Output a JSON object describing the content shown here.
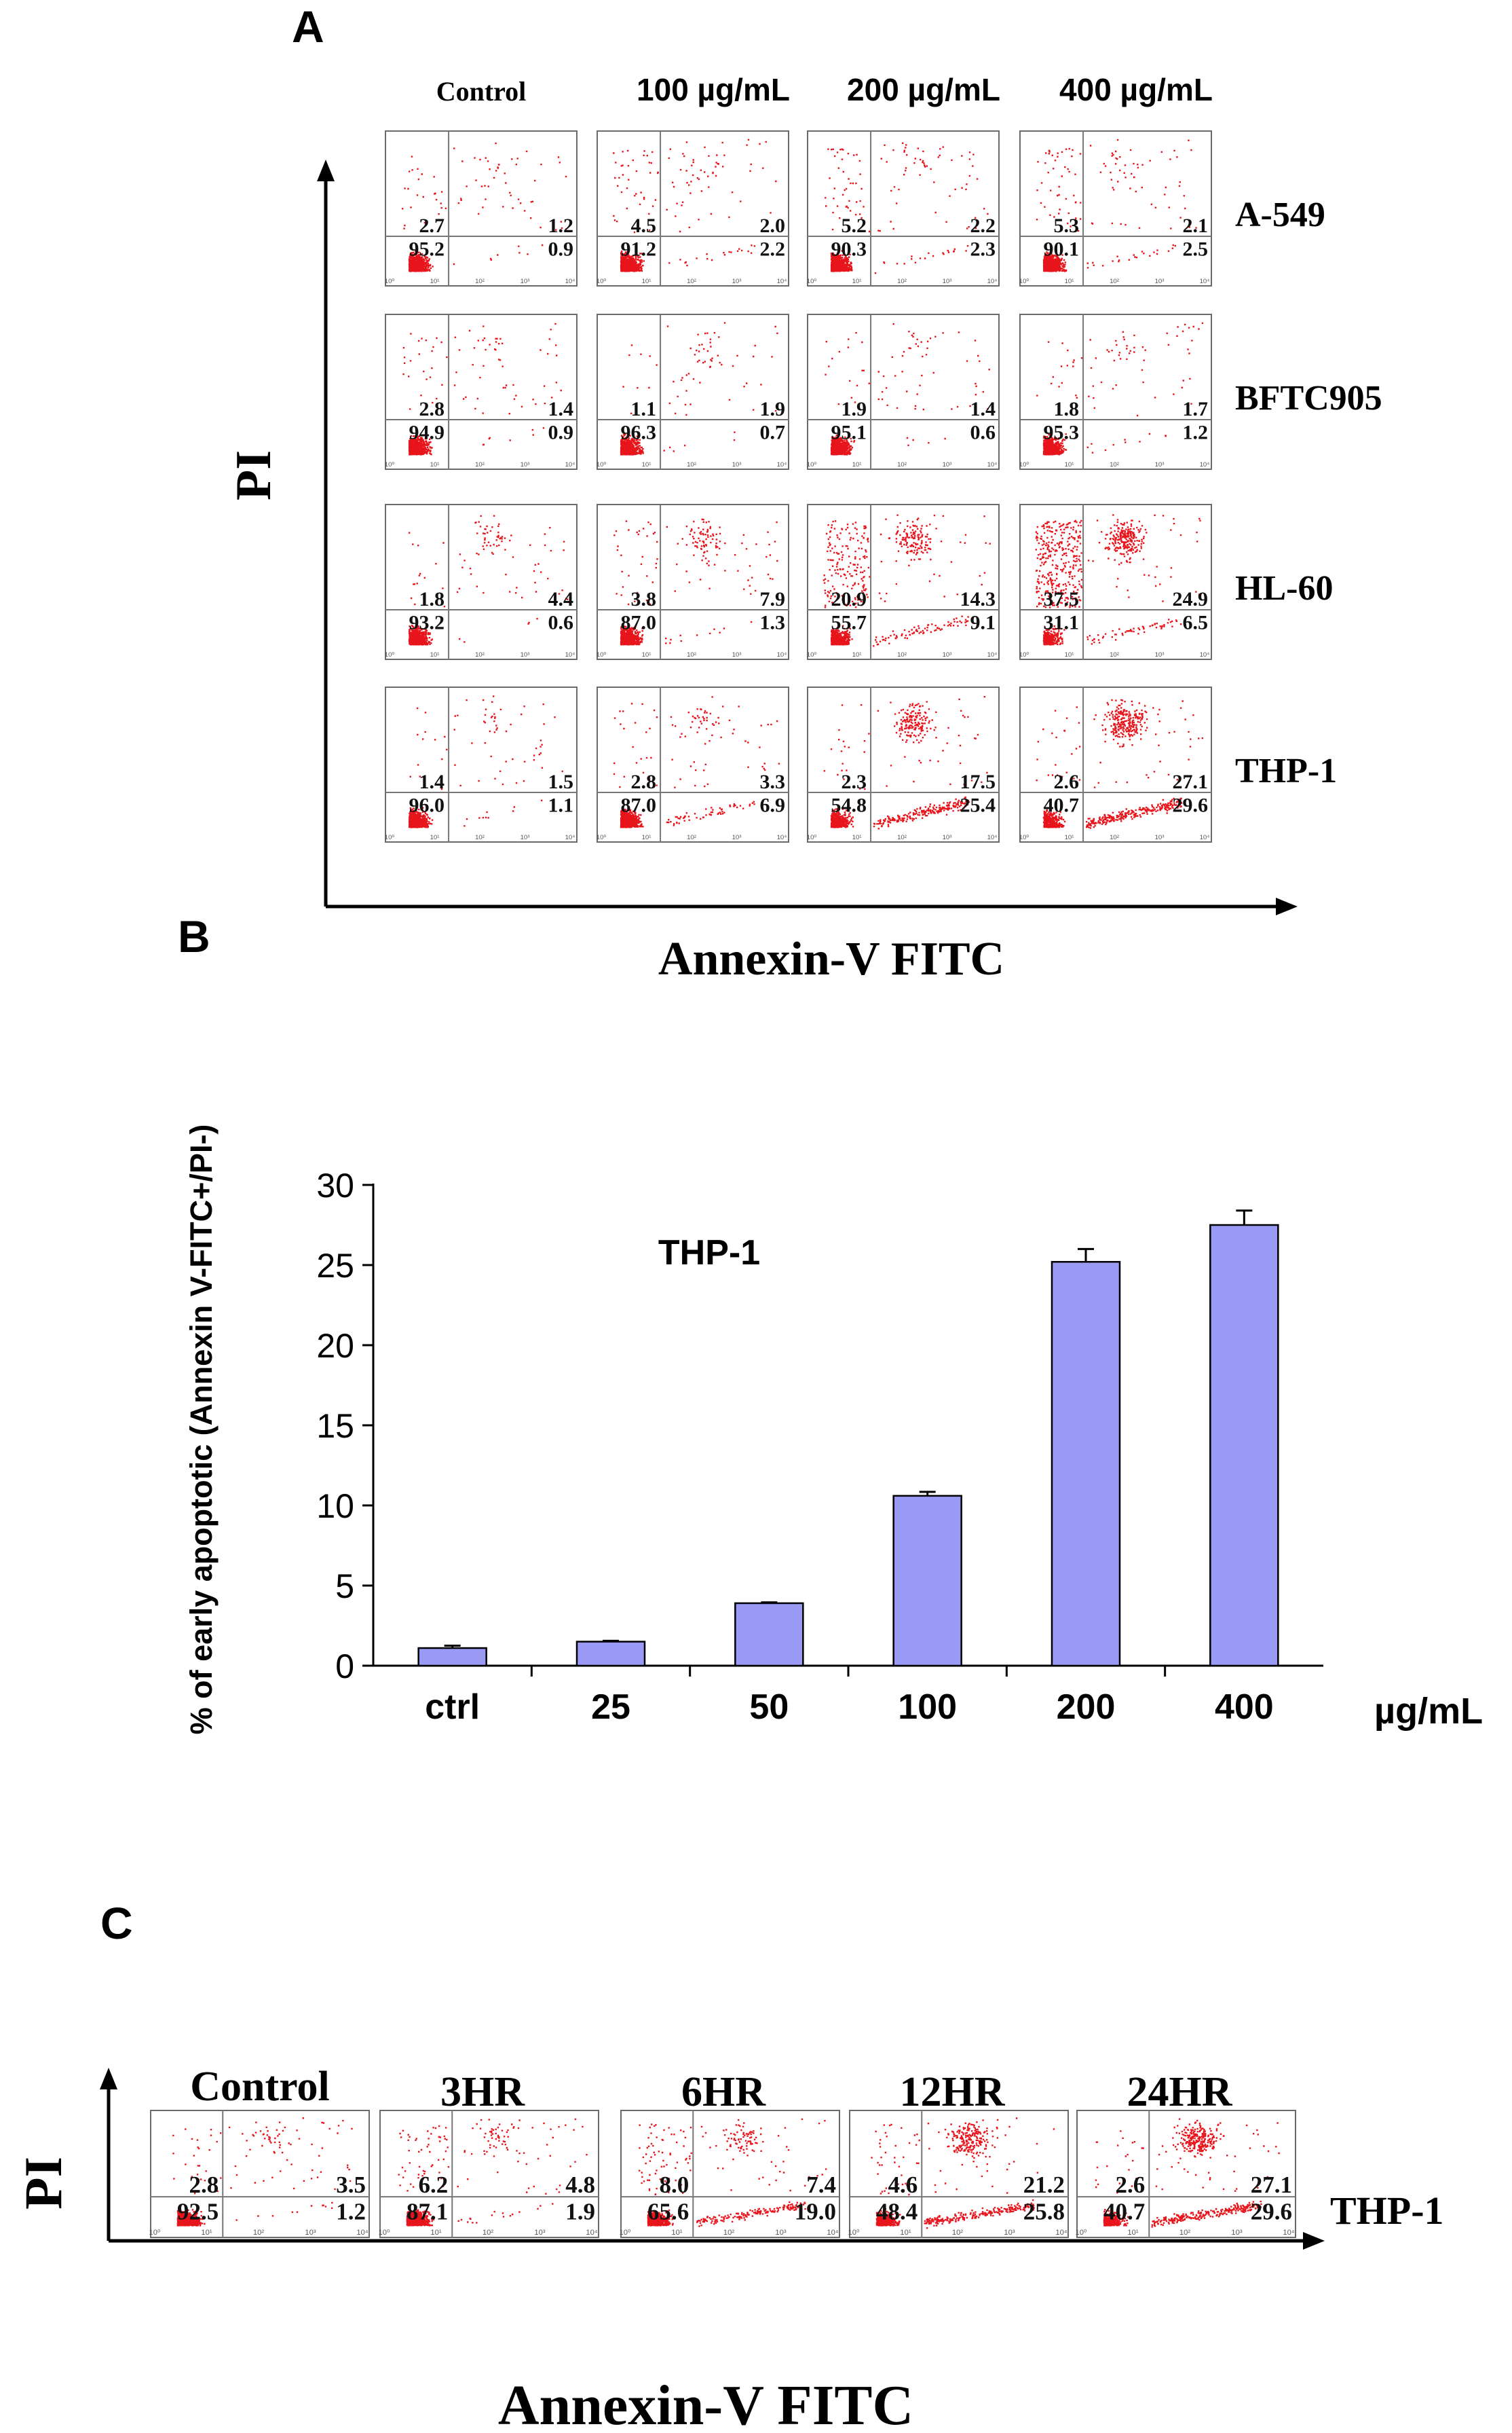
{
  "panel_a": {
    "letter": "A",
    "x_axis_label": "Annexin-V FITC",
    "y_axis_label": "PI",
    "columns": [
      "Control",
      "100 µg/mL",
      "200 µg/mL",
      "400 µg/mL"
    ],
    "rows": [
      "A-549",
      "BFTC905",
      "HL-60",
      "THP-1"
    ],
    "tick_labels": [
      "10⁰",
      "10¹",
      "10²",
      "10³",
      "10⁴"
    ],
    "quadrants": [
      [
        [
          2.7,
          1.2,
          95.2,
          0.9
        ],
        [
          4.5,
          2.0,
          91.2,
          2.2
        ],
        [
          5.2,
          2.2,
          90.3,
          2.3
        ],
        [
          5.3,
          2.1,
          90.1,
          2.5
        ]
      ],
      [
        [
          2.8,
          1.4,
          94.9,
          0.9
        ],
        [
          1.1,
          1.9,
          96.3,
          0.7
        ],
        [
          1.9,
          1.4,
          95.1,
          0.6
        ],
        [
          1.8,
          1.7,
          95.3,
          1.2
        ]
      ],
      [
        [
          1.8,
          4.4,
          93.2,
          0.6
        ],
        [
          3.8,
          7.9,
          87.0,
          1.3
        ],
        [
          20.9,
          14.3,
          55.7,
          9.1
        ],
        [
          37.5,
          24.9,
          31.1,
          6.5
        ]
      ],
      [
        [
          1.4,
          1.5,
          96.0,
          1.1
        ],
        [
          2.8,
          3.3,
          87.0,
          6.9
        ],
        [
          2.3,
          17.5,
          54.8,
          25.4
        ],
        [
          2.6,
          27.1,
          40.7,
          29.6
        ]
      ]
    ]
  },
  "panel_b": {
    "letter": "B",
    "unit_label": "µg/mL"
  },
  "panel_c": {
    "letter": "C",
    "x_axis_label": "Annexin-V FITC",
    "y_axis_label": "PI",
    "columns": [
      "Control",
      "3HR",
      "6HR",
      "12HR",
      "24HR"
    ],
    "row_label": "THP-1",
    "tick_labels": [
      "10⁰",
      "10¹",
      "10²",
      "10³",
      "10⁴"
    ],
    "quadrants": [
      [
        2.8,
        3.5,
        92.5,
        1.2
      ],
      [
        6.2,
        4.8,
        87.1,
        1.9
      ],
      [
        8.0,
        7.4,
        65.6,
        19.0
      ],
      [
        4.6,
        21.2,
        48.4,
        25.8
      ],
      [
        2.6,
        27.1,
        40.7,
        29.6
      ]
    ]
  },
  "colors": {
    "dots": "#e8141b",
    "bars": "#9a9af5",
    "text": "#000000",
    "frame": "#555555"
  },
  "chart_data": {
    "type": "bar",
    "title": "THP-1",
    "categories": [
      "ctrl",
      "25",
      "50",
      "100",
      "200",
      "400"
    ],
    "values": [
      1.1,
      1.5,
      3.9,
      10.6,
      25.2,
      27.5
    ],
    "errors": [
      0.15,
      0.05,
      0.05,
      0.25,
      0.8,
      0.9
    ],
    "xlabel": "µg/mL",
    "ylabel": "% of early apoptotic (Annexin V-FITC+/PI-)",
    "ylim": [
      0,
      30
    ],
    "yticks": [
      0,
      5,
      10,
      15,
      20,
      25,
      30
    ],
    "grid": false
  }
}
